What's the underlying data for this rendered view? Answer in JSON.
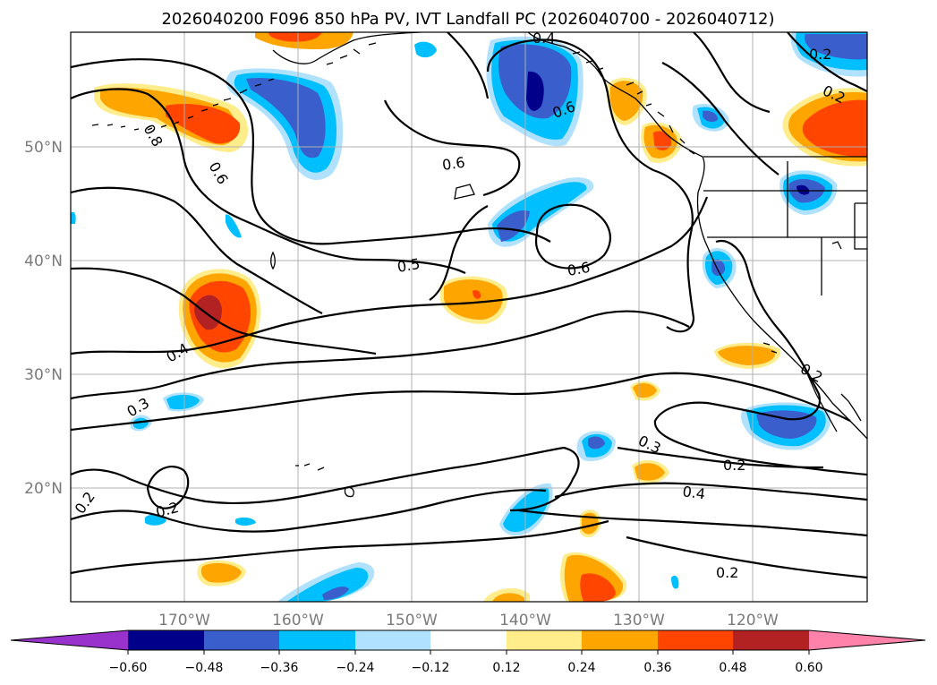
{
  "title": "2026040200 F096 850 hPa PV, IVT Landfall PC (2026040700 - 2026040712)",
  "map": {
    "lat_labels": [
      "50°N",
      "40°N",
      "30°N",
      "20°N"
    ],
    "lon_labels": [
      "170°W",
      "160°W",
      "150°W",
      "140°W",
      "130°W",
      "120°W"
    ],
    "contour_labels": [
      "0.8",
      "0.6",
      "0.6",
      "0.6",
      "0.6",
      "0.5",
      "0.4",
      "0.3",
      "0.2",
      "0.2",
      "0.3",
      "0.2",
      "0.4",
      "0.2",
      "0.2",
      "0.2",
      "0.2",
      "0.4"
    ]
  },
  "colorbar": {
    "ticks": [
      "−0.60",
      "−0.48",
      "−0.36",
      "−0.24",
      "−0.12",
      "0.12",
      "0.24",
      "0.36",
      "0.48",
      "0.60"
    ],
    "colors": [
      "#9932cc",
      "#00008b",
      "#3a5fcd",
      "#00bfff",
      "#b0e2ff",
      "#ffffff",
      "#ffec8b",
      "#ffa500",
      "#ff4500",
      "#b22222",
      "#ff82ab"
    ]
  },
  "palette": {
    "pos_light": "#ffec8b",
    "pos_med": "#ffa500",
    "pos_strong": "#ff4500",
    "pos_max": "#b22222",
    "neg_light": "#b0e2ff",
    "neg_med": "#00bfff",
    "neg_strong": "#3a5fcd",
    "neg_max": "#00008b"
  }
}
